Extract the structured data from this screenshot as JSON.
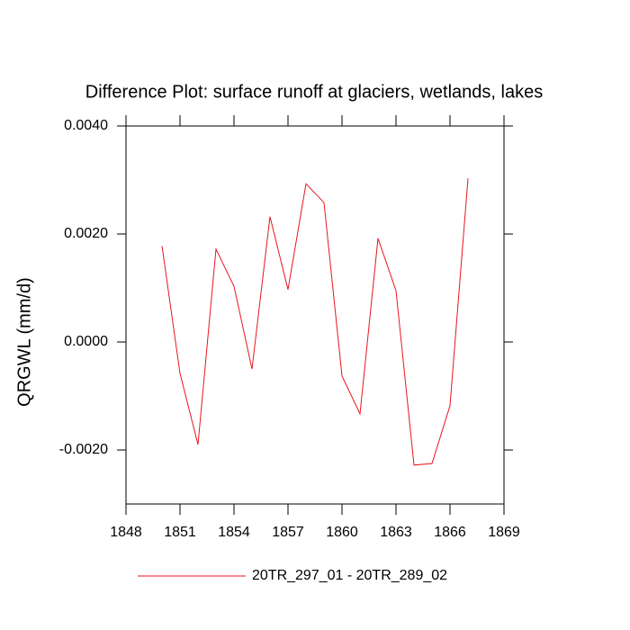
{
  "chart_data": {
    "type": "line",
    "title": "Difference Plot: surface runoff at glaciers, wetlands, lakes",
    "y_label": "QRGWL  (mm/d)",
    "x": [
      1850,
      1851,
      1852,
      1853,
      1854,
      1855,
      1856,
      1857,
      1858,
      1859,
      1860,
      1861,
      1862,
      1863,
      1864,
      1865,
      1866,
      1867
    ],
    "series": [
      {
        "name": "20TR_297_01 - 20TR_289_02",
        "color": "#e8151b",
        "values": [
          0.00178,
          -0.00058,
          -0.0019,
          0.00172,
          0.00103,
          -0.0005,
          0.00232,
          0.00097,
          0.00293,
          0.00258,
          -0.00063,
          -0.00133,
          0.00192,
          0.00095,
          -0.00228,
          -0.00225,
          -0.00118,
          0.00303
        ]
      }
    ],
    "xlim": [
      1848,
      1869
    ],
    "xticks": [
      1848,
      1851,
      1854,
      1857,
      1860,
      1863,
      1866,
      1869
    ],
    "ylim": [
      -0.003,
      0.004
    ],
    "yticks": [
      {
        "value": -0.002,
        "label": "-0.0020"
      },
      {
        "value": 0,
        "label": "0.0000"
      },
      {
        "value": 0.002,
        "label": "0.0020"
      },
      {
        "value": 0.004,
        "label": "0.0040"
      }
    ]
  }
}
